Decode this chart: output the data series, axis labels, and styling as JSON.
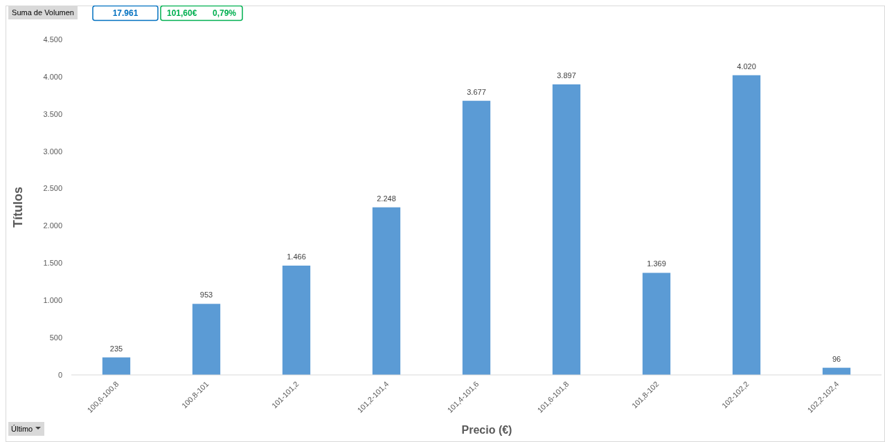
{
  "chart_data": {
    "type": "bar",
    "xlabel": "Precio (€)",
    "ylabel": "Títulos",
    "categories": [
      "100,6-100,8",
      "100,8-101",
      "101-101,2",
      "101,2-101,4",
      "101,4-101,6",
      "101,6-101,8",
      "101,8-102",
      "102-102,2",
      "102,2-102,4"
    ],
    "values": [
      235,
      953,
      1466,
      2248,
      3677,
      3897,
      1369,
      4020,
      96
    ],
    "value_labels": [
      "235",
      "953",
      "1.466",
      "2.248",
      "3.677",
      "3.897",
      "1.369",
      "4.020",
      "96"
    ],
    "color": "#5b9bd5",
    "ylim": [
      0,
      4500
    ],
    "yticks": [
      0,
      500,
      {
        "value": 1000,
        "label": "1.000"
      },
      {
        "value": 1500,
        "label": "1.500"
      },
      {
        "value": 2000,
        "label": "2.000"
      },
      {
        "value": 2500,
        "label": "2.500"
      },
      {
        "value": 3000,
        "label": "3.000"
      },
      {
        "value": 3500,
        "label": "3.500"
      },
      {
        "value": 4000,
        "label": "4.000"
      },
      {
        "value": 4500,
        "label": "4.500"
      }
    ],
    "grid": false,
    "annotations": [
      "Suma de Volumen",
      "17.961",
      "101,60€",
      "0,79%",
      "Último"
    ]
  }
}
